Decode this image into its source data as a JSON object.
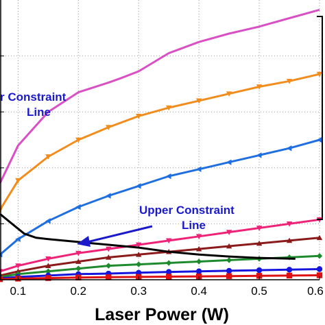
{
  "chart_data": {
    "type": "line",
    "xlabel": "Laser Power (W)",
    "xlim": [
      0.07,
      0.6
    ],
    "ylim": [
      0,
      1
    ],
    "x_ticks": [
      "0.1",
      "0.2",
      "0.3",
      "0.4",
      "0.5",
      "0.6"
    ],
    "grid": true,
    "annotations": [
      {
        "text_lines": [
          "r Constraint",
          "Line"
        ],
        "at": [
          0.11,
          0.78
        ],
        "color": "#1a1acc"
      },
      {
        "text_lines": [
          "Upper Constraint",
          "Line"
        ],
        "at": [
          0.3,
          0.28
        ],
        "color": "#1a1acc"
      }
    ],
    "series": [
      {
        "color": "#d94fc4",
        "marker": "none",
        "x": [
          0.07,
          0.1,
          0.15,
          0.2,
          0.25,
          0.27,
          0.3,
          0.35,
          0.4,
          0.45,
          0.5,
          0.55,
          0.6
        ],
        "y": [
          0.345,
          0.48,
          0.6,
          0.67,
          0.705,
          0.72,
          0.745,
          0.81,
          0.85,
          0.88,
          0.905,
          0.935,
          0.965
        ]
      },
      {
        "color": "#f28c1c",
        "marker": "triangle-down",
        "x": [
          0.07,
          0.1,
          0.15,
          0.2,
          0.25,
          0.3,
          0.35,
          0.4,
          0.45,
          0.5,
          0.55,
          0.6
        ],
        "y": [
          0.25,
          0.355,
          0.44,
          0.5,
          0.545,
          0.585,
          0.615,
          0.64,
          0.665,
          0.69,
          0.71,
          0.735
        ]
      },
      {
        "color": "#1f6fe0",
        "marker": "triangle-left",
        "x": [
          0.07,
          0.1,
          0.15,
          0.2,
          0.25,
          0.3,
          0.35,
          0.4,
          0.45,
          0.5,
          0.55,
          0.6
        ],
        "y": [
          0.09,
          0.145,
          0.21,
          0.26,
          0.3,
          0.335,
          0.37,
          0.395,
          0.42,
          0.445,
          0.47,
          0.5
        ]
      },
      {
        "color": "#ee2277",
        "marker": "triangle-down",
        "x": [
          0.07,
          0.1,
          0.15,
          0.2,
          0.25,
          0.3,
          0.35,
          0.4,
          0.45,
          0.5,
          0.55,
          0.6
        ],
        "y": [
          0.03,
          0.05,
          0.075,
          0.095,
          0.11,
          0.125,
          0.14,
          0.155,
          0.17,
          0.185,
          0.2,
          0.215
        ]
      },
      {
        "color": "#8b1a1a",
        "marker": "triangle-up",
        "x": [
          0.07,
          0.1,
          0.15,
          0.2,
          0.25,
          0.3,
          0.35,
          0.4,
          0.45,
          0.5,
          0.55,
          0.6
        ],
        "y": [
          0.015,
          0.03,
          0.05,
          0.065,
          0.08,
          0.09,
          0.1,
          0.11,
          0.12,
          0.13,
          0.14,
          0.15
        ]
      },
      {
        "color": "#1e8a2e",
        "marker": "diamond",
        "x": [
          0.07,
          0.1,
          0.15,
          0.2,
          0.25,
          0.3,
          0.35,
          0.4,
          0.45,
          0.5,
          0.55,
          0.6
        ],
        "y": [
          0.01,
          0.02,
          0.03,
          0.04,
          0.05,
          0.055,
          0.06,
          0.065,
          0.07,
          0.075,
          0.08,
          0.085
        ]
      },
      {
        "color": "#1515dd",
        "marker": "circle",
        "x": [
          0.07,
          0.1,
          0.15,
          0.2,
          0.25,
          0.3,
          0.35,
          0.4,
          0.45,
          0.5,
          0.55,
          0.6
        ],
        "y": [
          0.005,
          0.01,
          0.015,
          0.02,
          0.022,
          0.025,
          0.028,
          0.03,
          0.032,
          0.034,
          0.036,
          0.038
        ]
      },
      {
        "color": "#dd1111",
        "marker": "square",
        "x": [
          0.07,
          0.1,
          0.15,
          0.2,
          0.25,
          0.3,
          0.35,
          0.4,
          0.45,
          0.5,
          0.55,
          0.6
        ],
        "y": [
          0.002,
          0.004,
          0.006,
          0.008,
          0.009,
          0.01,
          0.011,
          0.012,
          0.013,
          0.014,
          0.015,
          0.016
        ]
      },
      {
        "color": "#000000",
        "marker": "none",
        "x": [
          0.07,
          0.09,
          0.11,
          0.13,
          0.15,
          0.2,
          0.25,
          0.3,
          0.35,
          0.4,
          0.45,
          0.5,
          0.56
        ],
        "y": [
          0.235,
          0.2,
          0.165,
          0.15,
          0.145,
          0.135,
          0.125,
          0.115,
          0.1,
          0.09,
          0.083,
          0.078,
          0.075
        ]
      }
    ]
  }
}
